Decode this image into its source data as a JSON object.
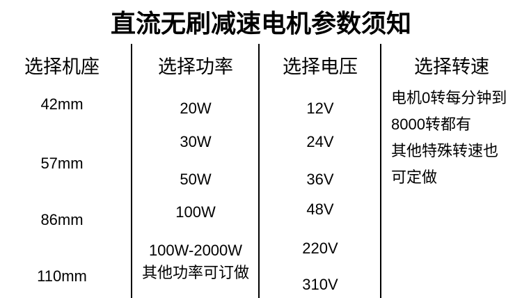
{
  "title": "直流无刷减速电机参数须知",
  "columns": [
    {
      "header": "选择机座",
      "items": [
        "42mm",
        "57mm",
        "86mm",
        "110mm"
      ]
    },
    {
      "header": "选择功率",
      "items": [
        "20W",
        "30W",
        "50W",
        "100W",
        "100W-2000W",
        "其他功率可订做"
      ]
    },
    {
      "header": "选择电压",
      "items": [
        "12V",
        "24V",
        "36V",
        "48V",
        "220V",
        "310V"
      ]
    },
    {
      "header": "选择转速",
      "lines": [
        "电机0转每分钟到",
        "8000转都有",
        "其他特殊转速也",
        "可定做"
      ]
    }
  ],
  "colors": {
    "text": "#000000",
    "background": "#ffffff",
    "divider": "#000000"
  }
}
